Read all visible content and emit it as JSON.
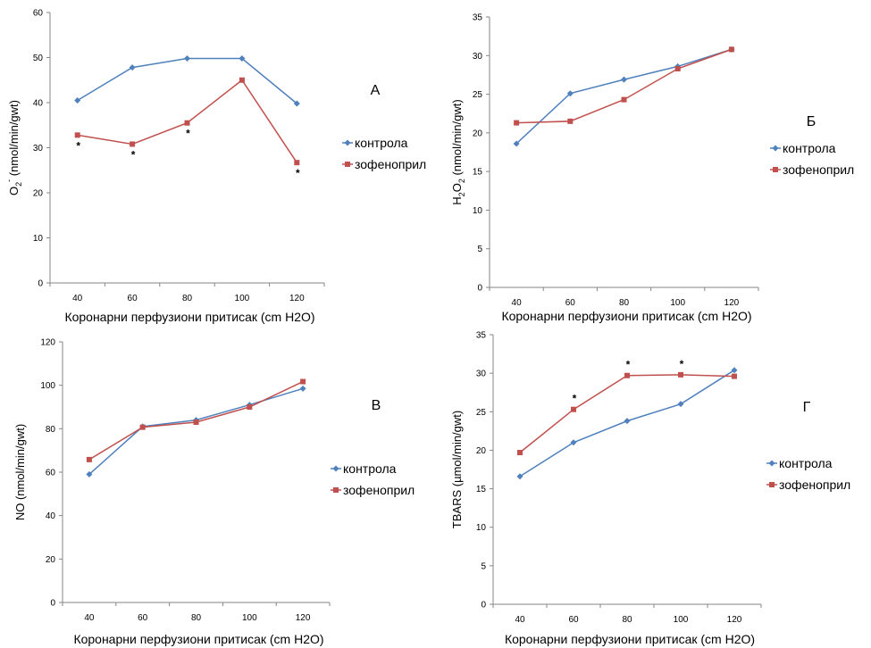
{
  "chart_data": [
    {
      "type": "line",
      "panel_label": "А",
      "x": [
        40,
        60,
        80,
        100,
        120
      ],
      "series": [
        {
          "name": "контрола",
          "color": "#4F81BD",
          "marker": "diamond",
          "values": [
            40.5,
            47.8,
            49.8,
            49.8,
            39.8
          ]
        },
        {
          "name": "зофеноприл",
          "color": "#C0504D",
          "marker": "square",
          "values": [
            32.8,
            30.8,
            35.5,
            45.0,
            26.7
          ]
        }
      ],
      "asterisks": [
        {
          "x": 40,
          "y": 32.8,
          "series": 1
        },
        {
          "x": 60,
          "y": 30.8,
          "series": 1
        },
        {
          "x": 80,
          "y": 35.5,
          "series": 1
        },
        {
          "x": 120,
          "y": 26.7,
          "series": 1
        }
      ],
      "asterisk_text": "*",
      "xlabel": "Коронарни перфузиони притисак  (cm H2O)",
      "ylabel": {
        "main": "O",
        "sub": "2",
        "sup": "-",
        "rest": "  (nmol/min/gwt)"
      },
      "ylim": [
        0,
        60
      ],
      "yticks": [
        0,
        10,
        20,
        30,
        40,
        50,
        60
      ],
      "xticks": [
        "40",
        "60",
        "80",
        "100",
        "120"
      ],
      "grid": false,
      "legend_position": "right"
    },
    {
      "type": "line",
      "panel_label": "Б",
      "x": [
        40,
        60,
        80,
        100,
        120
      ],
      "series": [
        {
          "name": "контрола",
          "color": "#4F81BD",
          "marker": "diamond",
          "values": [
            18.6,
            25.1,
            26.9,
            28.6,
            30.8
          ]
        },
        {
          "name": "зофеноприл",
          "color": "#C0504D",
          "marker": "square",
          "values": [
            21.3,
            21.5,
            24.3,
            28.3,
            30.8
          ]
        }
      ],
      "asterisks": [],
      "asterisk_text": "*",
      "xlabel": "Коронарни перфузиони притисак  (cm H2O)",
      "ylabel": {
        "main": "H",
        "sub": "2",
        "main2": "O",
        "sub2": "2",
        "rest": "  (nmol/min/gwt)"
      },
      "ylim": [
        0,
        35
      ],
      "yticks": [
        0,
        5,
        10,
        15,
        20,
        25,
        30,
        35
      ],
      "xticks": [
        "40",
        "60",
        "80",
        "100",
        "120"
      ],
      "grid": false,
      "legend_position": "right"
    },
    {
      "type": "line",
      "panel_label": "В",
      "x": [
        40,
        60,
        80,
        100,
        120
      ],
      "series": [
        {
          "name": "контрола",
          "color": "#4F81BD",
          "marker": "diamond",
          "values": [
            59,
            81,
            84,
            91,
            98.5
          ]
        },
        {
          "name": "зофеноприл",
          "color": "#C0504D",
          "marker": "square",
          "values": [
            65.8,
            80.7,
            83,
            90,
            101.7
          ]
        }
      ],
      "asterisks": [],
      "asterisk_text": "*",
      "xlabel": "Коронарни перфузиони притисак  (cm H2O)",
      "ylabel": {
        "main": "NO  (nmol/min/gwt)"
      },
      "ylim": [
        0,
        120
      ],
      "yticks": [
        0,
        20,
        40,
        60,
        80,
        100,
        120
      ],
      "xticks": [
        "40",
        "60",
        "80",
        "100",
        "120"
      ],
      "grid": false,
      "legend_position": "right"
    },
    {
      "type": "line",
      "panel_label": "Г",
      "x": [
        40,
        60,
        80,
        100,
        120
      ],
      "series": [
        {
          "name": "контрола",
          "color": "#4F81BD",
          "marker": "diamond",
          "values": [
            16.6,
            21.0,
            23.8,
            26.0,
            30.4
          ]
        },
        {
          "name": "зофеноприл",
          "color": "#C0504D",
          "marker": "square",
          "values": [
            19.7,
            25.3,
            29.7,
            29.8,
            29.6
          ]
        }
      ],
      "asterisks": [
        {
          "x": 60,
          "y": 25.3,
          "series": 1
        },
        {
          "x": 80,
          "y": 29.7,
          "series": 1
        },
        {
          "x": 100,
          "y": 29.8,
          "series": 1
        }
      ],
      "asterisk_text": "*",
      "xlabel": "Коронарни перфузиони притисак  (cm H2O)",
      "ylabel": {
        "main": "TBARS  (µmol/min/gwt)"
      },
      "ylim": [
        0,
        35
      ],
      "yticks": [
        0,
        5,
        10,
        15,
        20,
        25,
        30,
        35
      ],
      "xticks": [
        "40",
        "60",
        "80",
        "100",
        "120"
      ],
      "grid": false,
      "legend_position": "right"
    }
  ]
}
